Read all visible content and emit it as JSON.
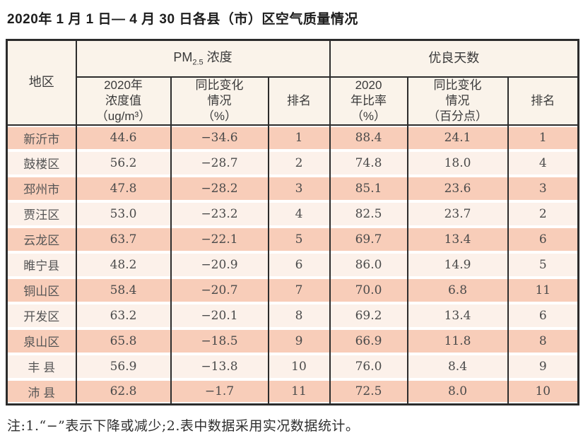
{
  "title": "2020年 1 月 1 日— 4 月 30 日各县（市）区空气质量情况",
  "colors": {
    "header_bg": "#faf3ea",
    "row_odd": "#f8cdb9",
    "row_even": "#fcf1ea",
    "border": "#2c2c2c"
  },
  "table": {
    "header": {
      "region": "地区",
      "pm25_prefix": "PM",
      "pm25_sub": "2.5",
      "pm25_suffix": " 浓度",
      "good_days_group": "优良天数",
      "col_pm_value": [
        "2020年",
        "浓度值",
        "（ug/m³）"
      ],
      "col_pm_change": [
        "同比变化",
        "情况",
        "（%）"
      ],
      "col_pm_rank": "排名",
      "col_good_rate": [
        "2020",
        "年比率",
        "（%）"
      ],
      "col_good_change": [
        "同比变化",
        "情况",
        "（百分点）"
      ],
      "col_good_rank": "排名"
    },
    "rows": [
      {
        "region": "新沂市",
        "pm_value": "44.6",
        "pm_change": "−34.6",
        "pm_rank": "1",
        "good_rate": "88.4",
        "good_change": "24.1",
        "good_rank": "1"
      },
      {
        "region": "鼓楼区",
        "pm_value": "56.2",
        "pm_change": "−28.7",
        "pm_rank": "2",
        "good_rate": "74.8",
        "good_change": "18.0",
        "good_rank": "4"
      },
      {
        "region": "邳州市",
        "pm_value": "47.8",
        "pm_change": "−28.2",
        "pm_rank": "3",
        "good_rate": "85.1",
        "good_change": "23.6",
        "good_rank": "3"
      },
      {
        "region": "贾汪区",
        "pm_value": "53.0",
        "pm_change": "−23.2",
        "pm_rank": "4",
        "good_rate": "82.5",
        "good_change": "23.7",
        "good_rank": "2"
      },
      {
        "region": "云龙区",
        "pm_value": "63.7",
        "pm_change": "−22.1",
        "pm_rank": "5",
        "good_rate": "69.7",
        "good_change": "13.4",
        "good_rank": "6"
      },
      {
        "region": "睢宁县",
        "pm_value": "48.2",
        "pm_change": "−20.9",
        "pm_rank": "6",
        "good_rate": "86.0",
        "good_change": "14.9",
        "good_rank": "5"
      },
      {
        "region": "铜山区",
        "pm_value": "58.4",
        "pm_change": "−20.7",
        "pm_rank": "7",
        "good_rate": "70.0",
        "good_change": "6.8",
        "good_rank": "11"
      },
      {
        "region": "开发区",
        "pm_value": "63.2",
        "pm_change": "−20.1",
        "pm_rank": "8",
        "good_rate": "69.2",
        "good_change": "13.4",
        "good_rank": "6"
      },
      {
        "region": "泉山区",
        "pm_value": "65.8",
        "pm_change": "−18.5",
        "pm_rank": "9",
        "good_rate": "66.9",
        "good_change": "11.8",
        "good_rank": "8"
      },
      {
        "region": "丰 县",
        "pm_value": "56.9",
        "pm_change": "−13.8",
        "pm_rank": "10",
        "good_rate": "76.0",
        "good_change": "8.4",
        "good_rank": "9"
      },
      {
        "region": "沛 县",
        "pm_value": "62.8",
        "pm_change": "−1.7",
        "pm_rank": "11",
        "good_rate": "72.5",
        "good_change": "8.0",
        "good_rank": "10"
      }
    ]
  },
  "note": "注:1.“−”表示下降或减少;2.表中数据采用实况数据统计。"
}
